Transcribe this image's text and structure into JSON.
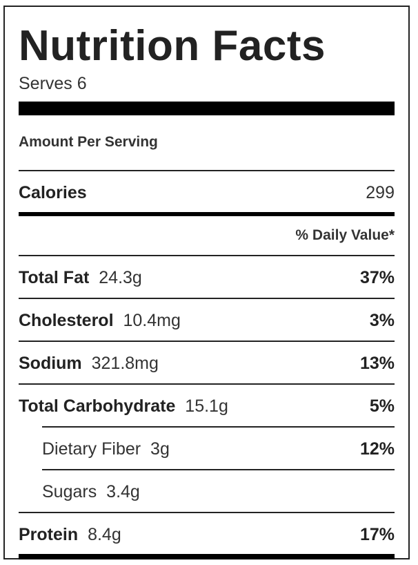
{
  "label": {
    "title": "Nutrition Facts",
    "serves": "Serves 6",
    "amount_per_serving": "Amount Per Serving",
    "calories": {
      "label": "Calories",
      "value": "299"
    },
    "daily_value_header": "% Daily Value*",
    "nutrients": [
      {
        "name": "Total Fat",
        "amount": "24.3g",
        "dv": "37%"
      },
      {
        "name": "Cholesterol",
        "amount": "10.4mg",
        "dv": "3%"
      },
      {
        "name": "Sodium",
        "amount": "321.8mg",
        "dv": "13%"
      },
      {
        "name": "Total Carbohydrate",
        "amount": "15.1g",
        "dv": "5%"
      }
    ],
    "sub_nutrients": [
      {
        "name": "Dietary Fiber",
        "amount": "3g",
        "dv": "12%"
      },
      {
        "name": "Sugars",
        "amount": "3.4g",
        "dv": ""
      }
    ],
    "protein": {
      "name": "Protein",
      "amount": "8.4g",
      "dv": "17%"
    }
  }
}
